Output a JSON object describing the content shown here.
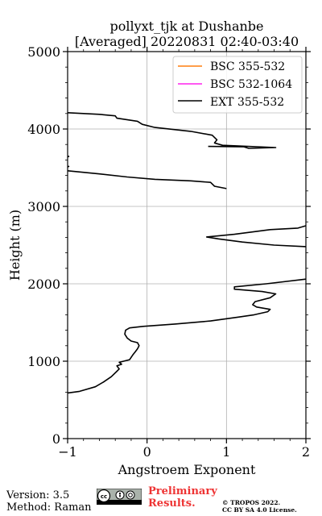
{
  "chart_data": {
    "type": "line",
    "title_line1": "pollyxt_tjk at Dushanbe",
    "title_line2": "[Averaged] 20220831 02:40-03:40",
    "xlabel": "Angstroem Exponent",
    "ylabel": "Height (m)",
    "xlim": [
      -1,
      2
    ],
    "ylim": [
      0,
      5000
    ],
    "x_ticks": [
      "−1",
      "0",
      "1",
      "2"
    ],
    "y_ticks": [
      "0",
      "1000",
      "2000",
      "3000",
      "4000",
      "5000"
    ],
    "grid": true,
    "legend_position": "top-right",
    "series": [
      {
        "name": "BSC 355-532",
        "color": "#ff7f0e",
        "points": []
      },
      {
        "name": "BSC 532-1064",
        "color": "#ff22ee",
        "points": []
      },
      {
        "name": "EXT 355-532",
        "color": "#000000",
        "segments": [
          [
            [
              -1.0,
              590
            ],
            [
              -0.85,
              610
            ],
            [
              -0.65,
              670
            ],
            [
              -0.55,
              730
            ],
            [
              -0.45,
              800
            ],
            [
              -0.38,
              870
            ],
            [
              -0.35,
              900
            ],
            [
              -0.38,
              940
            ],
            [
              -0.32,
              960
            ],
            [
              -0.35,
              985
            ],
            [
              -0.22,
              1020
            ],
            [
              -0.18,
              1080
            ],
            [
              -0.15,
              1120
            ],
            [
              -0.12,
              1160
            ],
            [
              -0.1,
              1200
            ],
            [
              -0.12,
              1240
            ],
            [
              -0.2,
              1260
            ],
            [
              -0.25,
              1300
            ],
            [
              -0.28,
              1350
            ],
            [
              -0.27,
              1400
            ],
            [
              -0.22,
              1430
            ],
            [
              -0.05,
              1450
            ],
            [
              0.35,
              1480
            ],
            [
              0.8,
              1520
            ],
            [
              1.15,
              1570
            ],
            [
              1.35,
              1600
            ],
            [
              1.52,
              1640
            ],
            [
              1.55,
              1670
            ],
            [
              1.38,
              1700
            ],
            [
              1.33,
              1730
            ],
            [
              1.36,
              1770
            ],
            [
              1.55,
              1820
            ],
            [
              1.62,
              1870
            ],
            [
              1.45,
              1900
            ],
            [
              1.1,
              1930
            ],
            [
              1.1,
              1960
            ],
            [
              1.5,
              2000
            ],
            [
              2.0,
              2060
            ]
          ],
          [
            [
              2.0,
              2480
            ],
            [
              1.6,
              2500
            ],
            [
              1.2,
              2540
            ],
            [
              0.9,
              2580
            ],
            [
              0.75,
              2605
            ],
            [
              1.1,
              2640
            ],
            [
              1.55,
              2700
            ],
            [
              1.9,
              2720
            ],
            [
              2.0,
              2750
            ]
          ],
          [
            [
              1.0,
              3230
            ],
            [
              0.85,
              3260
            ],
            [
              0.8,
              3310
            ],
            [
              0.55,
              3330
            ],
            [
              0.1,
              3350
            ],
            [
              -0.25,
              3380
            ],
            [
              -0.6,
              3420
            ],
            [
              -1.0,
              3460
            ]
          ],
          [
            [
              -1.0,
              3510
            ],
            [
              -0.98,
              3520
            ]
          ],
          [
            [
              -1.0,
              3640
            ],
            [
              -0.98,
              3650
            ]
          ],
          [
            [
              0.77,
              3775
            ],
            [
              1.22,
              3770
            ],
            [
              1.28,
              3750
            ],
            [
              1.62,
              3760
            ],
            [
              0.95,
              3790
            ],
            [
              0.85,
              3820
            ],
            [
              0.88,
              3860
            ],
            [
              0.82,
              3920
            ],
            [
              0.55,
              3970
            ],
            [
              0.1,
              4020
            ],
            [
              -0.06,
              4060
            ],
            [
              -0.12,
              4100
            ],
            [
              -0.38,
              4140
            ],
            [
              -0.4,
              4170
            ],
            [
              -0.6,
              4190
            ],
            [
              -1.0,
              4210
            ]
          ]
        ]
      }
    ]
  },
  "footer": {
    "version": "Version: 3.5",
    "method": "Method: Raman",
    "preliminary_line1": "Preliminary",
    "preliminary_line2": "Results.",
    "copyright_line1": "© TROPOS 2022.",
    "copyright_line2": "CC BY SA 4.0 License."
  }
}
